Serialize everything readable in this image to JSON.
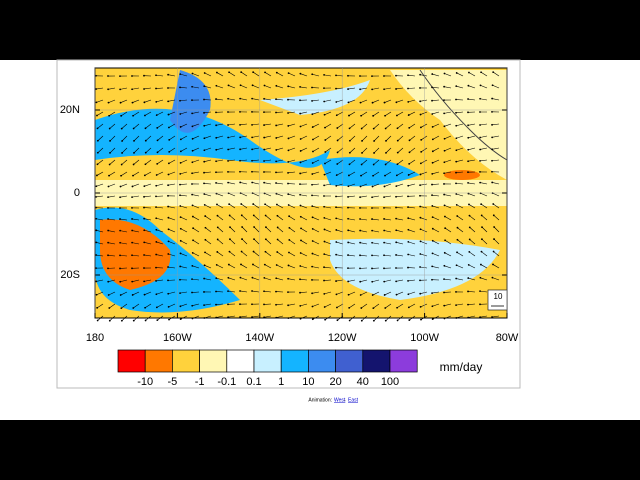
{
  "map": {
    "y_labels": [
      "20N",
      "0",
      "20S"
    ],
    "x_labels": [
      "180",
      "160W",
      "140W",
      "120W",
      "100W",
      "80W"
    ],
    "reference_vector": "10",
    "colorbar": {
      "colors": [
        "#ff0000",
        "#ff7800",
        "#ffd23c",
        "#fff7b4",
        "#ffffff",
        "#c8f0ff",
        "#14b4ff",
        "#3c8cf0",
        "#4060d0",
        "#14146e",
        "#8c3cdc"
      ],
      "labels": [
        "-10",
        "-5",
        "-1",
        "-0.1",
        "0.1",
        "1",
        "10",
        "20",
        "40",
        "100"
      ],
      "unit": "mm/day"
    }
  },
  "footer": {
    "prefix": "Animation:",
    "west": "West",
    "separator": "-",
    "east": "East"
  }
}
